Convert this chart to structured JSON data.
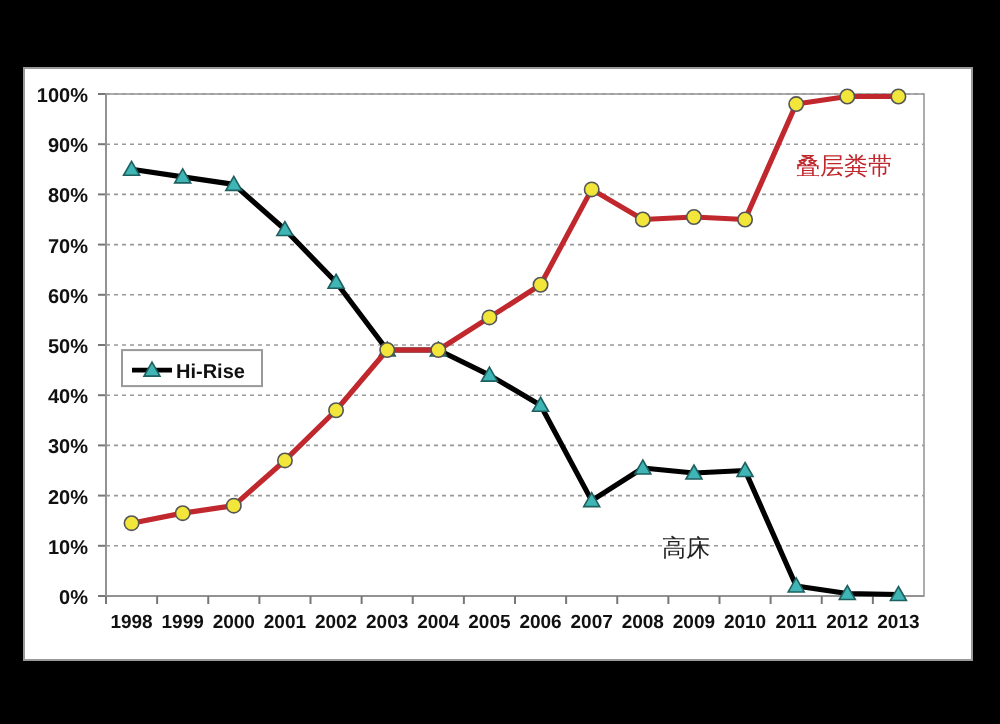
{
  "chart_data": {
    "type": "line",
    "categories": [
      "1998",
      "1999",
      "2000",
      "2001",
      "2002",
      "2003",
      "2004",
      "2005",
      "2006",
      "2007",
      "2008",
      "2009",
      "2010",
      "2011",
      "2012",
      "2013"
    ],
    "series": [
      {
        "name": "Hi-Rise",
        "color": "#000000",
        "marker": "triangle",
        "values": [
          85,
          83.5,
          82,
          73,
          62.5,
          49,
          49,
          44,
          38,
          19,
          25.5,
          24.5,
          25,
          2,
          0.5,
          0.3
        ]
      },
      {
        "name": "叠层粪带",
        "color": "#c0282d",
        "marker": "circle",
        "values": [
          14.5,
          16.5,
          18,
          27,
          37,
          49,
          49,
          55.5,
          62,
          81,
          75,
          75.5,
          75,
          98,
          99.5,
          99.5
        ]
      }
    ],
    "ylim": [
      0,
      100
    ],
    "yticks": [
      {
        "value": 0,
        "label": "0%"
      },
      {
        "value": 10,
        "label": "10%"
      },
      {
        "value": 20,
        "label": "20%"
      },
      {
        "value": 30,
        "label": "30%"
      },
      {
        "value": 40,
        "label": "40%"
      },
      {
        "value": 50,
        "label": "50%"
      },
      {
        "value": 60,
        "label": "60%"
      },
      {
        "value": 70,
        "label": "70%"
      },
      {
        "value": 80,
        "label": "80%"
      },
      {
        "value": 90,
        "label": "90%"
      },
      {
        "value": 100,
        "label": "100%"
      }
    ],
    "grid": "y",
    "legend": "left",
    "annotations": [
      "高床"
    ]
  }
}
